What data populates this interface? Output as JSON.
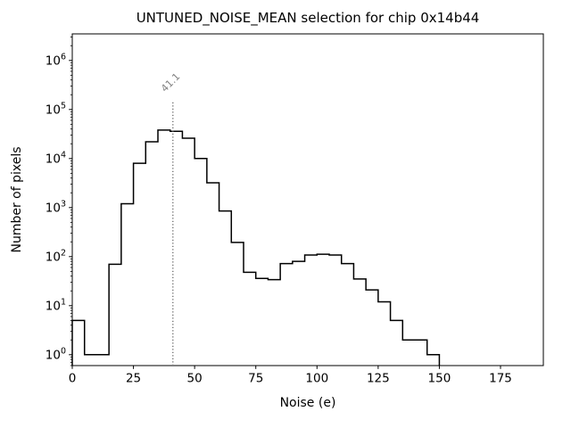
{
  "figure": {
    "background": "#ffffff",
    "text_color": "#000000"
  },
  "chart_data": {
    "type": "histogram",
    "title": "UNTUNED_NOISE_MEAN selection for chip 0x14b44",
    "xlabel": "Noise (e)",
    "ylabel": "Number of pixels",
    "x_scale": "linear",
    "y_scale": "log",
    "xlim": [
      0,
      192.5
    ],
    "ylim": [
      0.6,
      3480000
    ],
    "x_ticks": [
      0,
      25,
      50,
      75,
      100,
      125,
      150,
      175
    ],
    "y_major_tick_exponents": [
      0,
      1,
      2,
      3,
      4,
      5,
      6
    ],
    "grid": false,
    "legend": false,
    "line_color": "#000000",
    "bin_width": 5,
    "bin_edges": [
      0,
      5,
      10,
      15,
      20,
      25,
      30,
      35,
      40,
      45,
      50,
      55,
      60,
      65,
      70,
      75,
      80,
      85,
      90,
      95,
      100,
      105,
      110,
      115,
      120,
      125,
      130,
      135,
      140,
      145,
      150
    ],
    "counts": [
      5,
      1,
      1,
      70,
      1200,
      8000,
      22000,
      38000,
      36000,
      26000,
      10000,
      3200,
      850,
      195,
      48,
      36,
      34,
      72,
      80,
      108,
      112,
      108,
      72,
      35,
      21,
      12,
      5,
      2,
      2,
      1
    ],
    "annotation": {
      "label": "41.1",
      "x": 41.1,
      "line_ymax": 150000,
      "line_style": "dotted",
      "color": "#808080"
    }
  }
}
